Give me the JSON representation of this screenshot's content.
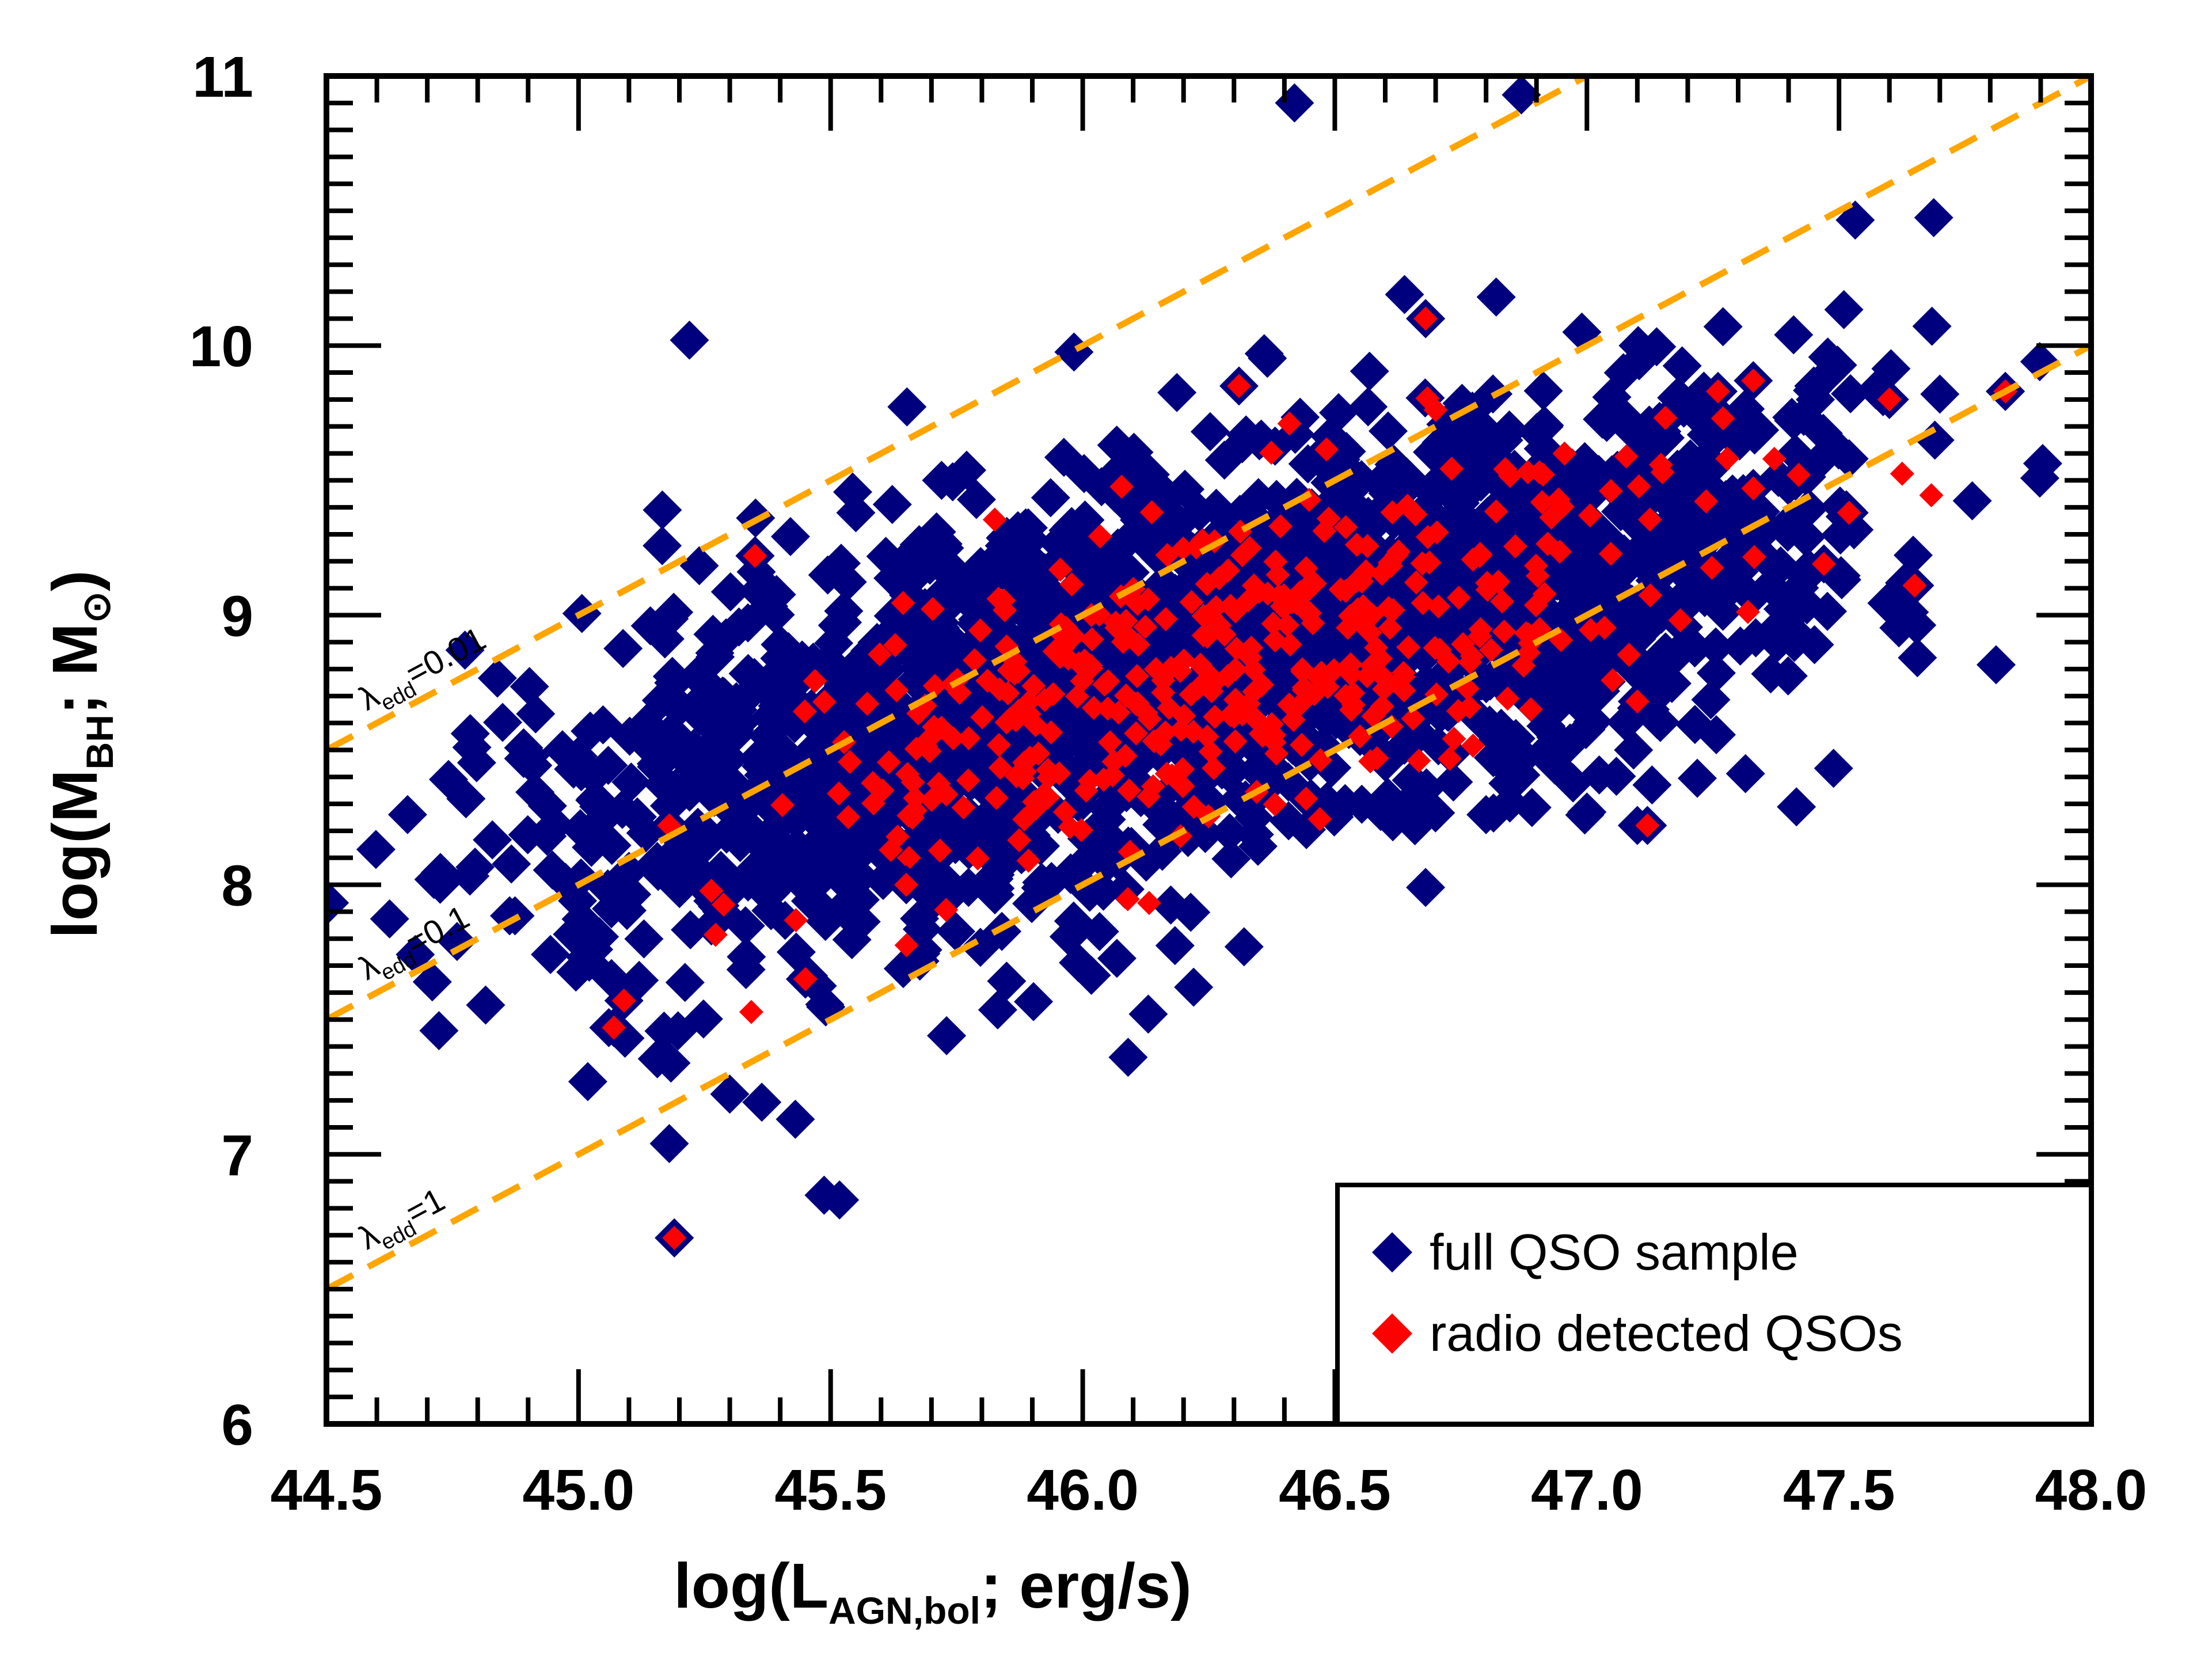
{
  "chart_data": {
    "type": "scatter",
    "xlabel": {
      "prefix": "log(L",
      "sub": "AGN,bol",
      "suffix": "; erg/s)"
    },
    "ylabel": {
      "prefix": "log(M",
      "sub": "BH",
      "mid": "; M",
      "symbol": "⊙",
      "suffix": ")"
    },
    "xlim": [
      44.5,
      48.0
    ],
    "ylim": [
      6,
      11
    ],
    "x_ticks": [
      "44.5",
      "45.0",
      "45.5",
      "46.0",
      "46.5",
      "47.0",
      "47.5",
      "48.0"
    ],
    "y_ticks": [
      "6",
      "7",
      "8",
      "9",
      "10",
      "11"
    ],
    "grid": false,
    "legend": {
      "position": "bottom-right",
      "entries": [
        "full QSO sample",
        "radio detected QSOs"
      ]
    },
    "colors": {
      "full": "#00007f",
      "radio": "#ff0000",
      "edd_lines": "#ffa500"
    },
    "eddington_lines": [
      {
        "label_prefix": "λ",
        "label_sub": "edd",
        "label_value": "=0.01",
        "offset": -36.0
      },
      {
        "label_prefix": "λ",
        "label_sub": "edd",
        "label_value": "=0.1",
        "offset": -37.0
      },
      {
        "label_prefix": "λ",
        "label_sub": "edd",
        "label_value": "=1",
        "offset": -38.0
      }
    ],
    "series": [
      {
        "name": "full QSO sample",
        "marker": "diamond",
        "core_clusters": [
          {
            "center": [
              46.2,
              8.85
            ],
            "spread": [
              0.6,
              0.44
            ],
            "corr": 0.55,
            "count": 1500
          },
          {
            "center": [
              45.6,
              8.3
            ],
            "spread": [
              0.3,
              0.38
            ],
            "corr": 0.4,
            "count": 350
          },
          {
            "center": [
              46.9,
              9.15
            ],
            "spread": [
              0.3,
              0.35
            ],
            "corr": 0.4,
            "count": 350
          }
        ],
        "outliers": [
          [
            46.42,
            10.9
          ],
          [
            46.87,
            10.93
          ],
          [
            45.22,
            10.02
          ],
          [
            45.19,
            6.69
          ],
          [
            45.18,
            7.04
          ],
          [
            45.43,
            7.13
          ],
          [
            46.09,
            7.36
          ],
          [
            45.06,
            7.47
          ],
          [
            45.03,
            7.76
          ],
          [
            45.04,
            8.29
          ],
          [
            46.13,
            7.52
          ],
          [
            46.22,
            7.62
          ],
          [
            47.1,
            8.22
          ],
          [
            47.63,
            9.12
          ],
          [
            47.83,
            9.83
          ],
          [
            47.6,
            9.8
          ],
          [
            47.27,
            10.07
          ],
          [
            46.68,
            10.1
          ],
          [
            46.82,
            10.18
          ],
          [
            46.99,
            10.05
          ],
          [
            46.36,
            9.97
          ],
          [
            47.41,
            10.04
          ],
          [
            47.45,
            9.85
          ],
          [
            45.72,
            9.5
          ],
          [
            45.35,
            9.22
          ],
          [
            46.32,
            7.77
          ],
          [
            45.73,
            7.44
          ],
          [
            46.68,
            7.99
          ],
          [
            46.8,
            8.26
          ],
          [
            47.0,
            8.27
          ],
          [
            45.1,
            8.05
          ],
          [
            45.55,
            9.38
          ],
          [
            47.52,
            9.58
          ],
          [
            47.36,
            9.2
          ],
          [
            47.7,
            9.82
          ]
        ]
      },
      {
        "name": "radio detected QSOs",
        "marker": "diamond",
        "core_clusters": [
          {
            "center": [
              46.4,
              8.9
            ],
            "spread": [
              0.42,
              0.33
            ],
            "corr": 0.55,
            "count": 360
          },
          {
            "center": [
              45.75,
              8.35
            ],
            "spread": [
              0.25,
              0.28
            ],
            "corr": 0.4,
            "count": 70
          }
        ],
        "outliers": [
          [
            45.19,
            6.69
          ],
          [
            45.07,
            7.47
          ],
          [
            45.09,
            7.57
          ],
          [
            45.18,
            8.22
          ],
          [
            45.35,
            9.22
          ],
          [
            46.68,
            10.1
          ],
          [
            46.31,
            9.85
          ],
          [
            47.12,
            8.22
          ],
          [
            47.26,
            9.83
          ],
          [
            47.33,
            9.87
          ],
          [
            47.27,
            9.73
          ],
          [
            47.6,
            9.8
          ],
          [
            47.83,
            9.83
          ],
          [
            47.65,
            9.11
          ],
          [
            47.42,
            9.52
          ],
          [
            47.47,
            9.19
          ],
          [
            47.52,
            9.38
          ],
          [
            47.33,
            9.47
          ],
          [
            47.1,
            8.68
          ],
          [
            45.65,
            8.0
          ],
          [
            45.45,
            7.65
          ],
          [
            46.55,
            8.55
          ]
        ]
      }
    ]
  }
}
